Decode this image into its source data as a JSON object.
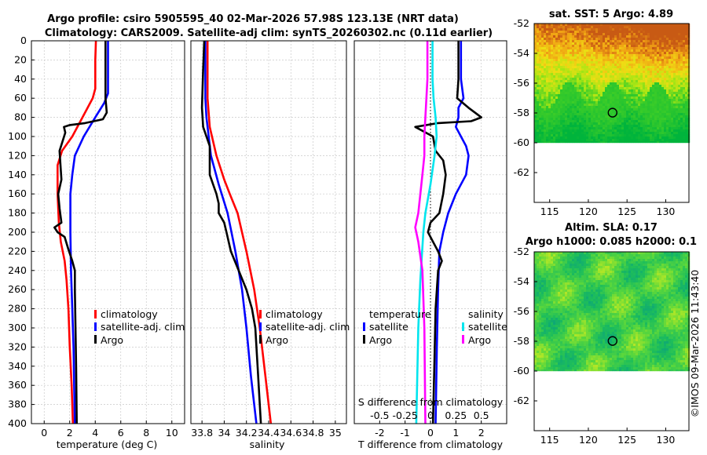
{
  "title_line1": "Argo profile: csiro 5905595_40 02-Mar-2026 57.98S 123.13E (NRT data)",
  "title_line2": "Climatology: CARS2009. Satellite-adj clim: synTS_20260302.nc (0.11d earlier)",
  "watermark": "©IMOS 09-Mar-2026 11:43:40",
  "colors": {
    "climatology": "#ff0000",
    "satellite": "#0000ff",
    "argo": "#000000",
    "salinity_satellite": "#00e5ee",
    "salinity_argo": "#ff00ff"
  },
  "chart_data": [
    {
      "id": "temperature",
      "type": "line",
      "xlabel": "temperature (deg C)",
      "ylabel": "",
      "xlim": [
        -1,
        11
      ],
      "ylim": [
        400,
        0
      ],
      "xticks": [
        0,
        2,
        4,
        6,
        8,
        10
      ],
      "xtick_labels": [
        "0",
        "2",
        "4",
        "6",
        "8",
        "10"
      ],
      "yticks": [
        0,
        20,
        40,
        60,
        80,
        100,
        120,
        140,
        160,
        180,
        200,
        220,
        240,
        260,
        280,
        300,
        320,
        340,
        360,
        380,
        400
      ],
      "ytick_labels": [
        "0",
        "20",
        "40",
        "60",
        "80",
        "100",
        "120",
        "140",
        "160",
        "180",
        "200",
        "220",
        "240",
        "260",
        "280",
        "300",
        "320",
        "340",
        "360",
        "380",
        "400"
      ],
      "legend": [
        "climatology",
        "satellite-adj. clim",
        "Argo"
      ],
      "series": [
        {
          "name": "climatology",
          "color": "#ff0000",
          "points": [
            [
              4.05,
              0
            ],
            [
              4.0,
              20
            ],
            [
              4.0,
              50
            ],
            [
              3.8,
              60
            ],
            [
              3.0,
              80
            ],
            [
              2.2,
              100
            ],
            [
              1.4,
              115
            ],
            [
              1.05,
              130
            ],
            [
              1.05,
              160
            ],
            [
              1.15,
              190
            ],
            [
              1.3,
              210
            ],
            [
              1.6,
              230
            ],
            [
              1.75,
              250
            ],
            [
              1.9,
              280
            ],
            [
              2.0,
              320
            ],
            [
              2.15,
              360
            ],
            [
              2.25,
              400
            ]
          ]
        },
        {
          "name": "satellite-adj. clim",
          "color": "#0000ff",
          "points": [
            [
              5.0,
              0
            ],
            [
              5.0,
              40
            ],
            [
              5.0,
              55
            ],
            [
              4.7,
              65
            ],
            [
              4.0,
              80
            ],
            [
              3.1,
              100
            ],
            [
              2.4,
              120
            ],
            [
              2.2,
              140
            ],
            [
              2.05,
              160
            ],
            [
              2.05,
              200
            ],
            [
              2.1,
              240
            ],
            [
              2.2,
              280
            ],
            [
              2.3,
              320
            ],
            [
              2.35,
              360
            ],
            [
              2.4,
              400
            ]
          ]
        },
        {
          "name": "Argo",
          "color": "#000000",
          "points": [
            [
              4.8,
              0
            ],
            [
              4.8,
              60
            ],
            [
              4.9,
              75
            ],
            [
              4.6,
              82
            ],
            [
              3.2,
              86
            ],
            [
              2.0,
              88
            ],
            [
              1.55,
              90
            ],
            [
              1.65,
              96
            ],
            [
              1.2,
              115
            ],
            [
              1.35,
              145
            ],
            [
              1.1,
              160
            ],
            [
              1.2,
              175
            ],
            [
              1.35,
              190
            ],
            [
              0.8,
              195
            ],
            [
              1.05,
              200
            ],
            [
              1.6,
              205
            ],
            [
              1.9,
              218
            ],
            [
              2.2,
              230
            ],
            [
              2.4,
              240
            ],
            [
              2.4,
              260
            ],
            [
              2.45,
              300
            ],
            [
              2.5,
              340
            ],
            [
              2.55,
              400
            ]
          ]
        }
      ]
    },
    {
      "id": "salinity",
      "type": "line",
      "xlabel": "salinity",
      "ylabel": "",
      "xlim": [
        33.7,
        35.1
      ],
      "ylim": [
        400,
        0
      ],
      "xticks": [
        33.8,
        34.0,
        34.2,
        34.4,
        34.6,
        34.8,
        35.0
      ],
      "xtick_labels": [
        "33.8",
        "34",
        "34.2",
        "34.4",
        "34.6",
        "34.8",
        "35"
      ],
      "legend": [
        "climatology",
        "satellite-adj. clim",
        "Argo"
      ],
      "series": [
        {
          "name": "climatology",
          "color": "#ff0000",
          "points": [
            [
              33.85,
              0
            ],
            [
              33.85,
              60
            ],
            [
              33.87,
              90
            ],
            [
              33.93,
              120
            ],
            [
              34.0,
              145
            ],
            [
              34.05,
              160
            ],
            [
              34.12,
              180
            ],
            [
              34.2,
              220
            ],
            [
              34.27,
              260
            ],
            [
              34.32,
              300
            ],
            [
              34.37,
              350
            ],
            [
              34.42,
              400
            ]
          ]
        },
        {
          "name": "satellite-adj. clim",
          "color": "#0000ff",
          "points": [
            [
              33.83,
              0
            ],
            [
              33.83,
              60
            ],
            [
              33.84,
              80
            ],
            [
              33.88,
              120
            ],
            [
              33.95,
              150
            ],
            [
              34.03,
              180
            ],
            [
              34.1,
              220
            ],
            [
              34.16,
              260
            ],
            [
              34.2,
              300
            ],
            [
              34.24,
              350
            ],
            [
              34.29,
              400
            ]
          ]
        },
        {
          "name": "Argo",
          "color": "#000000",
          "points": [
            [
              33.82,
              0
            ],
            [
              33.81,
              30
            ],
            [
              33.8,
              70
            ],
            [
              33.81,
              90
            ],
            [
              33.87,
              110
            ],
            [
              33.87,
              140
            ],
            [
              33.93,
              160
            ],
            [
              33.95,
              170
            ],
            [
              33.95,
              180
            ],
            [
              34.0,
              190
            ],
            [
              34.02,
              200
            ],
            [
              34.06,
              220
            ],
            [
              34.13,
              240
            ],
            [
              34.2,
              260
            ],
            [
              34.25,
              280
            ],
            [
              34.28,
              300
            ],
            [
              34.3,
              340
            ],
            [
              34.32,
              380
            ],
            [
              34.33,
              400
            ]
          ]
        }
      ]
    },
    {
      "id": "differences",
      "type": "line",
      "xlabel": "T difference from climatology",
      "ylabel": "",
      "xlim": [
        -3,
        3
      ],
      "ylim": [
        400,
        0
      ],
      "xticks": [
        -2,
        -1,
        0,
        1,
        2
      ],
      "xtick_labels": [
        "-2",
        "-1",
        "0",
        "1",
        "2"
      ],
      "top_axis_label": "S difference from climatology",
      "top_ticks": [
        -0.5,
        -0.25,
        0,
        0.25,
        0.5
      ],
      "top_tick_labels": [
        "-0.5",
        "-0.25",
        "0",
        "0.25",
        "0.5"
      ],
      "legend_group_titles": [
        "temperature",
        "salinity"
      ],
      "legend_temperature": [
        "satellite",
        "Argo"
      ],
      "legend_salinity": [
        "satellite",
        "Argo"
      ],
      "series": [
        {
          "name": "temperature satellite",
          "color": "#0000ff",
          "points": [
            [
              1.2,
              0
            ],
            [
              1.2,
              40
            ],
            [
              1.3,
              60
            ],
            [
              1.1,
              70
            ],
            [
              1.1,
              80
            ],
            [
              1.0,
              90
            ],
            [
              1.2,
              100
            ],
            [
              1.4,
              110
            ],
            [
              1.5,
              120
            ],
            [
              1.4,
              140
            ],
            [
              1.0,
              160
            ],
            [
              0.7,
              180
            ],
            [
              0.5,
              200
            ],
            [
              0.35,
              220
            ],
            [
              0.3,
              260
            ],
            [
              0.25,
              320
            ],
            [
              0.2,
              400
            ]
          ]
        },
        {
          "name": "temperature Argo",
          "color": "#000000",
          "points": [
            [
              1.1,
              0
            ],
            [
              1.1,
              40
            ],
            [
              1.05,
              60
            ],
            [
              1.5,
              70
            ],
            [
              2.0,
              80
            ],
            [
              1.6,
              84
            ],
            [
              0.3,
              86
            ],
            [
              -0.6,
              90
            ],
            [
              0.1,
              100
            ],
            [
              0.2,
              115
            ],
            [
              0.5,
              125
            ],
            [
              0.6,
              140
            ],
            [
              0.5,
              160
            ],
            [
              0.35,
              180
            ],
            [
              0.0,
              190
            ],
            [
              -0.1,
              200
            ],
            [
              0.1,
              210
            ],
            [
              0.3,
              220
            ],
            [
              0.45,
              230
            ],
            [
              0.3,
              240
            ],
            [
              0.2,
              280
            ],
            [
              0.15,
              340
            ],
            [
              0.1,
              400
            ]
          ]
        },
        {
          "name": "salinity satellite",
          "color": "#00e5ee",
          "points": [
            [
              0.02,
              0
            ],
            [
              0.02,
              40
            ],
            [
              0.03,
              60
            ],
            [
              0.05,
              80
            ],
            [
              0.06,
              100
            ],
            [
              0.04,
              120
            ],
            [
              0.0,
              150
            ],
            [
              -0.05,
              180
            ],
            [
              -0.07,
              200
            ],
            [
              -0.1,
              250
            ],
            [
              -0.12,
              300
            ],
            [
              -0.13,
              350
            ],
            [
              -0.14,
              400
            ]
          ]
        },
        {
          "name": "salinity Argo",
          "color": "#ff00ff",
          "points": [
            [
              -0.03,
              0
            ],
            [
              -0.03,
              40
            ],
            [
              -0.05,
              80
            ],
            [
              -0.06,
              100
            ],
            [
              -0.06,
              120
            ],
            [
              -0.08,
              140
            ],
            [
              -0.1,
              160
            ],
            [
              -0.12,
              180
            ],
            [
              -0.15,
              195
            ],
            [
              -0.12,
              210
            ],
            [
              -0.08,
              240
            ],
            [
              -0.06,
              300
            ],
            [
              -0.05,
              400
            ]
          ]
        }
      ]
    },
    {
      "id": "sst_map",
      "type": "heatmap",
      "title": "sat. SST: 5 Argo: 4.89",
      "xlim": [
        113,
        133
      ],
      "ylim": [
        -64,
        -52
      ],
      "xticks": [
        115,
        120,
        125,
        130
      ],
      "xtick_labels": [
        "115",
        "120",
        "125",
        "130"
      ],
      "yticks": [
        -52,
        -54,
        -56,
        -58,
        -60,
        -62
      ],
      "ytick_labels": [
        "-52",
        "-54",
        "-56",
        "-58",
        "-60",
        "-62"
      ],
      "data_lat_range": [
        -60,
        -52
      ],
      "marker": {
        "lon": 123.13,
        "lat": -57.98
      }
    },
    {
      "id": "sla_map",
      "type": "heatmap",
      "title_line1": "Altim. SLA: 0.17",
      "title_line2": "Argo h1000: 0.085 h2000: 0.1",
      "xlim": [
        113,
        133
      ],
      "ylim": [
        -64,
        -52
      ],
      "xticks": [
        115,
        120,
        125,
        130
      ],
      "xtick_labels": [
        "115",
        "120",
        "125",
        "130"
      ],
      "yticks": [
        -52,
        -54,
        -56,
        -58,
        -60,
        -62
      ],
      "ytick_labels": [
        "-52",
        "-54",
        "-56",
        "-58",
        "-60",
        "-62"
      ],
      "data_lat_range": [
        -60,
        -52
      ],
      "marker": {
        "lon": 123.13,
        "lat": -57.98
      }
    }
  ]
}
